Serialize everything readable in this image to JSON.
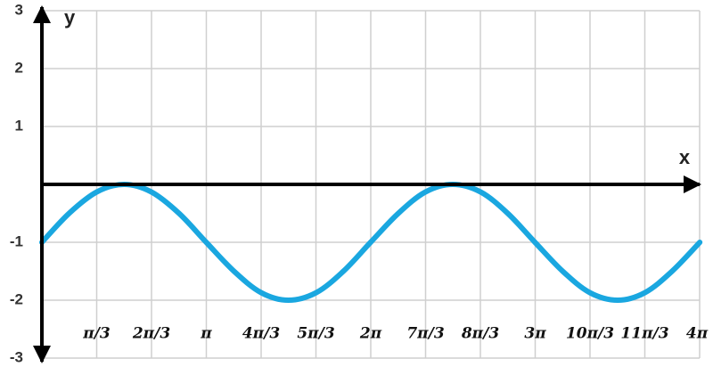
{
  "chart_data": {
    "type": "line",
    "x_label": "x",
    "y_label": "y",
    "xlim": [
      0,
      12.5664
    ],
    "ylim": [
      -3,
      3
    ],
    "xticks": [
      {
        "value": 1.0472,
        "label": "π/3"
      },
      {
        "value": 2.0944,
        "label": "2π/3"
      },
      {
        "value": 3.1416,
        "label": "π"
      },
      {
        "value": 4.1888,
        "label": "4π/3"
      },
      {
        "value": 5.236,
        "label": "5π/3"
      },
      {
        "value": 6.2832,
        "label": "2π"
      },
      {
        "value": 7.3304,
        "label": "7π/3"
      },
      {
        "value": 8.3776,
        "label": "8π/3"
      },
      {
        "value": 9.4248,
        "label": "3π"
      },
      {
        "value": 10.472,
        "label": "10π/3"
      },
      {
        "value": 11.5192,
        "label": "11π/3"
      },
      {
        "value": 12.5664,
        "label": "4π"
      }
    ],
    "yticks": [
      -3,
      -2,
      -1,
      1,
      2,
      3
    ],
    "grid": true,
    "x": [
      0,
      0.52,
      1.05,
      1.57,
      2.09,
      2.62,
      3.14,
      3.67,
      4.19,
      4.71,
      5.24,
      5.76,
      6.28,
      6.81,
      7.33,
      7.85,
      8.38,
      8.9,
      9.42,
      9.95,
      10.47,
      11,
      11.52,
      12.04,
      12.57
    ],
    "series": [
      {
        "color": "#1aa7e0",
        "values": [
          -1,
          -0.5,
          -0.13,
          0,
          -0.13,
          -0.5,
          -1,
          -1.5,
          -1.87,
          -2,
          -1.87,
          -1.5,
          -1,
          -0.5,
          -0.13,
          0,
          -0.13,
          -0.5,
          -1,
          -1.5,
          -1.87,
          -2,
          -1.87,
          -1.5,
          -1
        ]
      }
    ]
  }
}
